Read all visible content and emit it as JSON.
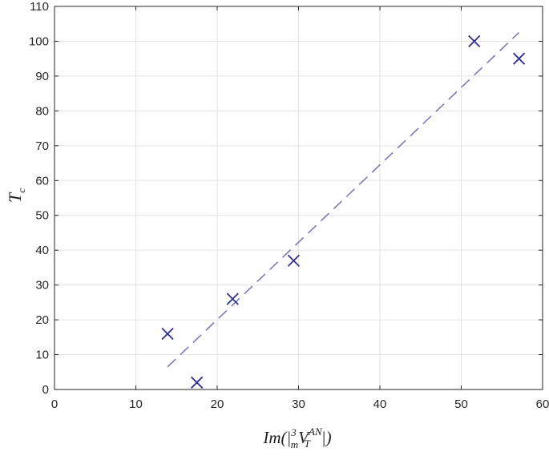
{
  "chart_data": {
    "type": "scatter",
    "title": "",
    "xlim": [
      0,
      60
    ],
    "ylim": [
      0,
      110
    ],
    "x_ticks": [
      0,
      10,
      20,
      30,
      40,
      50,
      60
    ],
    "y_ticks": [
      0,
      10,
      20,
      30,
      40,
      50,
      60,
      70,
      80,
      90,
      100,
      110
    ],
    "grid": true,
    "ylabel": {
      "base": "T",
      "subscript": "c"
    },
    "xlabel": {
      "prefix": "Im(|",
      "presup": "3",
      "presub": "m",
      "base": "V",
      "sup": "AN",
      "sub": "T",
      "suffix": "|)"
    },
    "series": [
      {
        "marker": "x",
        "color": "#2f2f8f",
        "points": [
          {
            "x": 13.9,
            "y": 16
          },
          {
            "x": 17.5,
            "y": 2
          },
          {
            "x": 21.9,
            "y": 26
          },
          {
            "x": 29.4,
            "y": 37
          },
          {
            "x": 51.6,
            "y": 100
          },
          {
            "x": 57.1,
            "y": 95
          }
        ]
      }
    ],
    "fit_line": {
      "style": "dashed",
      "color": "#7a7ab8",
      "from": {
        "x": 13.9,
        "y": 6.5
      },
      "to": {
        "x": 57.1,
        "y": 102.5
      }
    }
  }
}
